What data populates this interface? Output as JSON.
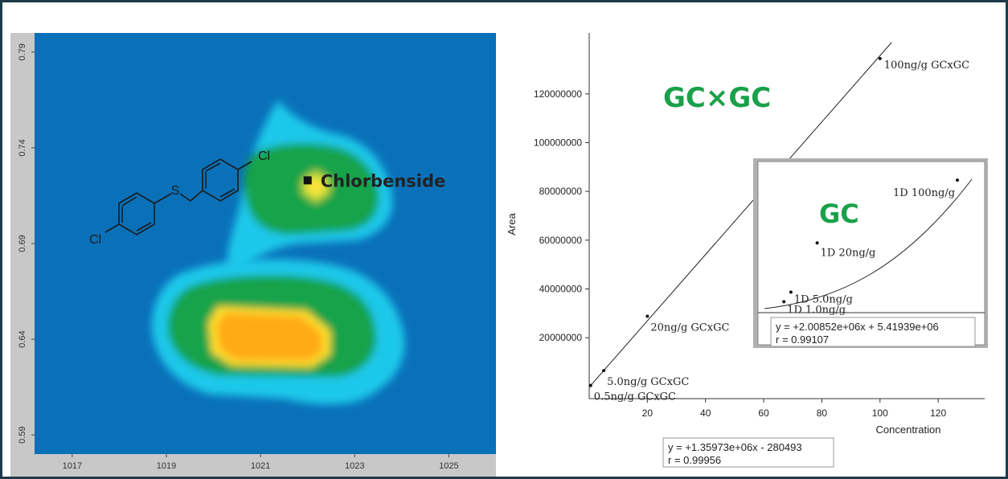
{
  "chart_data": [
    {
      "type": "heatmap",
      "x_ticks": [
        "1017",
        "1019",
        "1021",
        "1023",
        "1025"
      ],
      "y_ticks": [
        "0.59",
        "0.64",
        "0.69",
        "0.74",
        "0.79"
      ],
      "xlim": [
        1016.2,
        1026
      ],
      "ylim": [
        0.58,
        0.8
      ],
      "peaks": [
        {
          "name": "Chlorbenside",
          "x": 1022.0,
          "y": 0.723
        },
        {
          "name": "",
          "x": 1021.2,
          "y": 0.64
        }
      ],
      "molecule_labels": [
        "S",
        "Cl",
        "Cl"
      ],
      "colors": {
        "background": "#0a71b9",
        "outer": "#1ec8ea",
        "mid": "#16a34a",
        "inner": "#ffd21f",
        "core": "#ffab16"
      }
    },
    {
      "type": "scatter",
      "title": "GC×GC",
      "xlabel": "Concentration",
      "ylabel": "Area",
      "xlim": [
        0,
        136
      ],
      "ylim": [
        -5000000,
        145000000
      ],
      "x_ticks": [
        "20",
        "40",
        "60",
        "80",
        "100",
        "120"
      ],
      "y_ticks": [
        "20000000",
        "40000000",
        "60000000",
        "80000000",
        "100000000",
        "120000000"
      ],
      "points": [
        {
          "x": 0.5,
          "y": 400000,
          "label": "0.5ng/g GCxGC"
        },
        {
          "x": 5.0,
          "y": 6500000,
          "label": "5.0ng/g GCxGC"
        },
        {
          "x": 20,
          "y": 28800000,
          "label": "20ng/g GCxGC"
        },
        {
          "x": 100,
          "y": 134500000,
          "label": "100ng/g GCxGC"
        }
      ],
      "fit": {
        "slope": 1359730,
        "intercept": -280493
      },
      "equation": "y = +1.35973e+06x - 280493",
      "r": "r = 0.99956",
      "color": "#1aa04a"
    },
    {
      "type": "scatter",
      "title": "GC",
      "points": [
        {
          "x": 1.0,
          "y": 36000000,
          "label": "1D 1.0ng/g"
        },
        {
          "x": 5.0,
          "y": 39500000,
          "label": "1D 5.0ng/g"
        },
        {
          "x": 20,
          "y": 57500000,
          "label": "1D 20ng/g"
        },
        {
          "x": 100,
          "y": 80500000,
          "label": "1D 100ng/g"
        }
      ],
      "equation": "y = +2.00852e+06x + 5.41939e+06",
      "r": "r = 0.99107",
      "color": "#1aa04a"
    }
  ]
}
